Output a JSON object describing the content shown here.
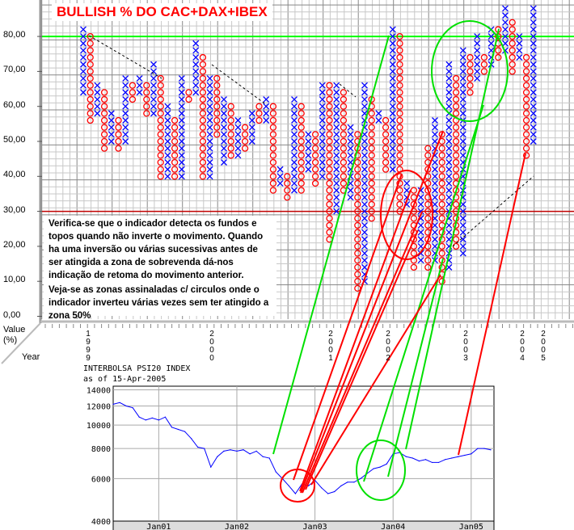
{
  "title": "BULLISH % DO CAC+DAX+IBEX",
  "note": {
    "p1": "Verifica-se que o indicador detecta os fundos e topos quando não inverte o movimento. Quando ha uma inversão ou várias sucessivas antes de ser atingida a zona de sobrevenda dá-nos indicação de retoma do movimento anterior.",
    "p2": "Veja-se as zonas assinaladas c/ circulos onde o indicador inverteu várias vezes sem ter atingido a zona 50%"
  },
  "labels": {
    "value": "Value",
    "pct": "(%)",
    "year": "Year"
  },
  "colors": {
    "x": "#0000ff",
    "o": "#ff0000",
    "overbought": "#00ff00",
    "oversold": "#c00000",
    "psi": "#0000ff"
  },
  "chart_data": [
    {
      "type": "point-and-figure",
      "title": "BULLISH % DO CAC+DAX+IBEX",
      "ylabel": "Value (%)",
      "xlabel": "Year",
      "ylim": [
        0,
        90
      ],
      "box_size": 2,
      "yticks": [
        "0,00",
        "10,00",
        "20,00",
        "30,00",
        "40,00",
        "50,00",
        "60,00",
        "70,00",
        "80,00"
      ],
      "year_ticks": [
        "1999",
        "2000",
        "2001",
        "2002",
        "2003",
        "2004",
        "2005"
      ],
      "reference_lines": [
        {
          "value": 80,
          "color": "#00ff00"
        },
        {
          "value": 30,
          "color": "#c00000"
        }
      ],
      "columns": [
        [
          "X",
          64,
          82
        ],
        [
          "O",
          56,
          80
        ],
        [
          "X",
          58,
          66
        ],
        [
          "O",
          48,
          64
        ],
        [
          "X",
          50,
          58
        ],
        [
          "O",
          48,
          56
        ],
        [
          "X",
          50,
          68
        ],
        [
          "O",
          62,
          66
        ],
        [
          "X",
          64,
          68
        ],
        [
          "O",
          58,
          66
        ],
        [
          "X",
          58,
          72
        ],
        [
          "O",
          40,
          68
        ],
        [
          "X",
          40,
          60
        ],
        [
          "O",
          40,
          56
        ],
        [
          "X",
          40,
          68
        ],
        [
          "O",
          62,
          64
        ],
        [
          "X",
          64,
          78
        ],
        [
          "O",
          40,
          74
        ],
        [
          "X",
          40,
          68
        ],
        [
          "O",
          52,
          68
        ],
        [
          "X",
          44,
          62
        ],
        [
          "O",
          46,
          60
        ],
        [
          "X",
          46,
          56
        ],
        [
          "O",
          48,
          54
        ],
        [
          "X",
          50,
          58
        ],
        [
          "O",
          56,
          60
        ],
        [
          "X",
          56,
          62
        ],
        [
          "O",
          36,
          60
        ],
        [
          "X",
          38,
          42
        ],
        [
          "O",
          34,
          40
        ],
        [
          "X",
          36,
          62
        ],
        [
          "O",
          36,
          60
        ],
        [
          "X",
          42,
          52
        ],
        [
          "O",
          38,
          52
        ],
        [
          "X",
          40,
          66
        ],
        [
          "O",
          22,
          66
        ],
        [
          "X",
          30,
          66
        ],
        [
          "O",
          36,
          64
        ],
        [
          "X",
          34,
          54
        ],
        [
          "O",
          8,
          52
        ],
        [
          "X",
          10,
          66
        ],
        [
          "O",
          28,
          62
        ],
        [
          "X",
          56,
          58
        ],
        [
          "O",
          42,
          56
        ],
        [
          "X",
          42,
          82
        ],
        [
          "O",
          30,
          80
        ],
        [
          "X",
          32,
          38
        ],
        [
          "O",
          14,
          36
        ],
        [
          "X",
          16,
          36
        ],
        [
          "O",
          14,
          48
        ],
        [
          "X",
          16,
          56
        ],
        [
          "O",
          10,
          52
        ],
        [
          "X",
          14,
          72
        ],
        [
          "O",
          20,
          68
        ],
        [
          "X",
          18,
          76
        ],
        [
          "O",
          64,
          74
        ],
        [
          "X",
          68,
          80
        ],
        [
          "O",
          70,
          74
        ],
        [
          "X",
          72,
          82
        ],
        [
          "O",
          74,
          82
        ],
        [
          "X",
          76,
          88
        ],
        [
          "O",
          70,
          84
        ],
        [
          "X",
          74,
          80
        ],
        [
          "O",
          46,
          74
        ],
        [
          "X",
          50,
          88
        ]
      ]
    },
    {
      "type": "line",
      "title": "INTERBOLSA PSI20 INDEX",
      "subtitle": "as of 15-Apr-2005",
      "yscale": "log",
      "ylim": [
        4000,
        14000
      ],
      "yticks": [
        "14000",
        "12000",
        "10000",
        "8000",
        "6000",
        "4000"
      ],
      "xticks": [
        "Jan01",
        "Jan02",
        "Jan03",
        "Jan04",
        "Jan05"
      ],
      "x": [
        "2000-06",
        "2000-07",
        "2000-08",
        "2000-09",
        "2000-10",
        "2000-11",
        "2000-12",
        "2001-01",
        "2001-02",
        "2001-03",
        "2001-04",
        "2001-05",
        "2001-06",
        "2001-07",
        "2001-08",
        "2001-09",
        "2001-10",
        "2001-11",
        "2001-12",
        "2002-01",
        "2002-02",
        "2002-03",
        "2002-04",
        "2002-05",
        "2002-06",
        "2002-07",
        "2002-08",
        "2002-09",
        "2002-10",
        "2002-11",
        "2002-12",
        "2003-01",
        "2003-02",
        "2003-03",
        "2003-04",
        "2003-05",
        "2003-06",
        "2003-07",
        "2003-08",
        "2003-09",
        "2003-10",
        "2003-11",
        "2003-12",
        "2004-01",
        "2004-02",
        "2004-03",
        "2004-04",
        "2004-05",
        "2004-06",
        "2004-07",
        "2004-08",
        "2004-09",
        "2004-10",
        "2004-11",
        "2004-12",
        "2005-01",
        "2005-02",
        "2005-03",
        "2005-04"
      ],
      "values": [
        12200,
        12400,
        12000,
        11800,
        10800,
        10500,
        10700,
        10500,
        10800,
        9800,
        9600,
        9400,
        8800,
        8100,
        8000,
        6700,
        7400,
        7800,
        7900,
        7800,
        7900,
        7600,
        7800,
        7400,
        7300,
        6400,
        6000,
        5600,
        5200,
        5700,
        5600,
        5900,
        5500,
        5200,
        5300,
        5600,
        5800,
        5800,
        6000,
        6300,
        6600,
        6700,
        6900,
        7600,
        7700,
        7400,
        7300,
        7100,
        7200,
        7000,
        7000,
        7200,
        7300,
        7400,
        7500,
        7600,
        8000,
        8000,
        7900
      ]
    }
  ]
}
